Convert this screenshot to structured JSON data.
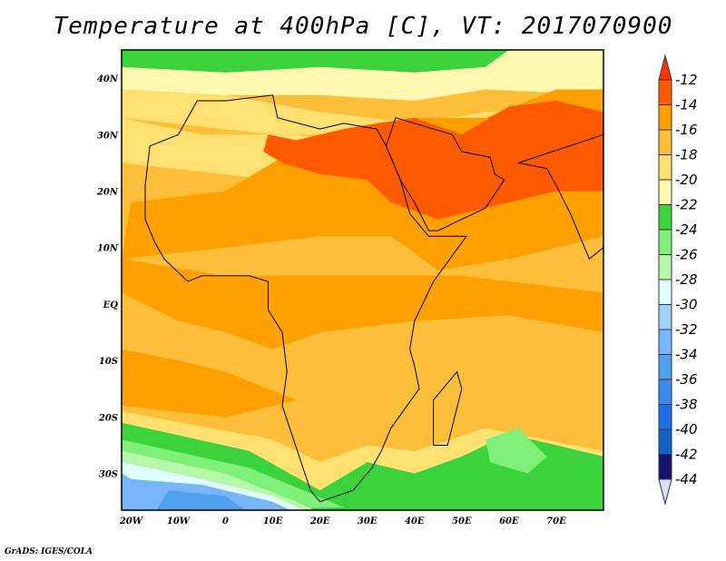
{
  "title": "Temperature at 400hPa [C], VT: 2017070900",
  "credit": "GrADS: IGES/COLA",
  "chart_data": {
    "type": "heatmap",
    "title": "Temperature at 400hPa [C], VT: 2017070900",
    "variable": "Temperature at 400hPa",
    "units": "C",
    "valid_time": "2017070900",
    "lon_range": [
      -22,
      80
    ],
    "lat_range": [
      -36.5,
      45
    ],
    "x_ticks": [
      "20W",
      "10W",
      "0",
      "10E",
      "20E",
      "30E",
      "40E",
      "50E",
      "60E",
      "70E"
    ],
    "x_tick_values": [
      -20,
      -10,
      0,
      10,
      20,
      30,
      40,
      50,
      60,
      70
    ],
    "y_ticks": [
      "40N",
      "30N",
      "20N",
      "10N",
      "EQ",
      "10S",
      "20S",
      "30S"
    ],
    "y_tick_values": [
      40,
      30,
      20,
      10,
      0,
      -10,
      -20,
      -30
    ],
    "legend": {
      "placement": "right",
      "levels": [
        -12,
        -14,
        -16,
        -18,
        -20,
        -22,
        -24,
        -26,
        -28,
        -30,
        -32,
        -34,
        -36,
        -38,
        -40,
        -42,
        -44
      ],
      "labels": [
        "-12",
        "-14",
        "-16",
        "-18",
        "-20",
        "-22",
        "-24",
        "-26",
        "-28",
        "-30",
        "-32",
        "-34",
        "-36",
        "-38",
        "-40",
        "-42",
        "-44"
      ],
      "colors": [
        "#ff5a00",
        "#ffa000",
        "#fdbf3a",
        "#ffe070",
        "#fff8b0",
        "#3cd23c",
        "#7ef07a",
        "#b4f8a8",
        "#e0ffff",
        "#a0d2fa",
        "#78b4f8",
        "#50a0f0",
        "#3c8cf0",
        "#1e6ee6",
        "#1460c8",
        "#141470"
      ],
      "over_color": "#ff3300",
      "under_color": "#dcdcff"
    }
  }
}
